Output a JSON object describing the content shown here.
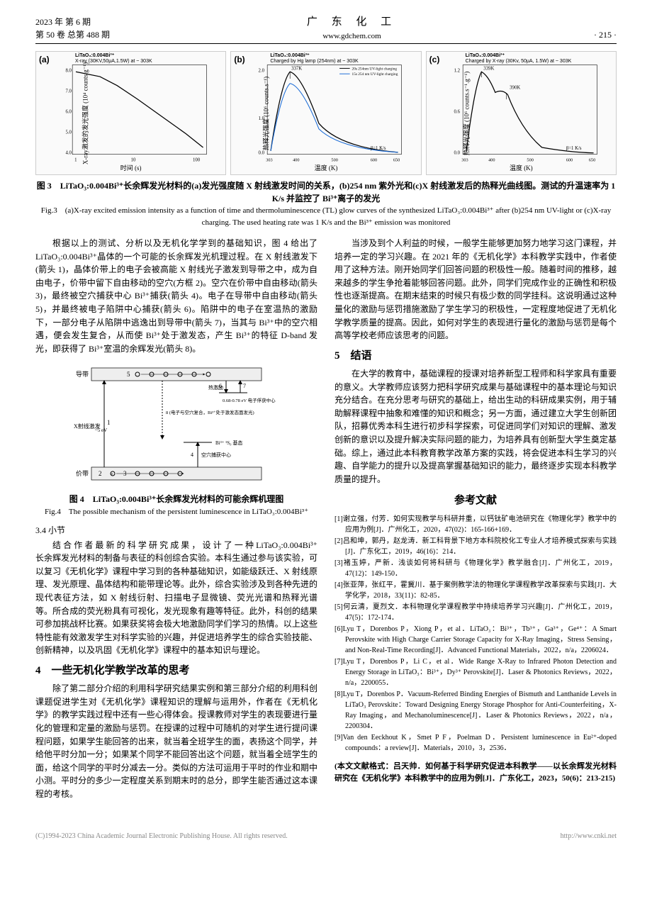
{
  "header": {
    "year_issue": "2023 年 第 6 期",
    "vol_issue": "第 50 卷 总第 488 期",
    "journal": "广 东 化 工",
    "url": "www.gdchem.com",
    "page": "· 215 ·"
  },
  "fig3": {
    "panels": {
      "a": {
        "tag": "(a)",
        "t1": "LiTaO₃:0.004Bi³⁺",
        "t2": "X-ray (30KV,50μA,1.5W) at ~ 303K",
        "ylabel": "X-ray激发的发光强度 (10⁴ counts.g⁻¹)",
        "xlabel": "时间 (s)",
        "type": "line",
        "line_color": "#000000",
        "x": [
          1,
          5,
          10,
          50,
          100,
          200
        ],
        "y": [
          8.5,
          8.2,
          8.0,
          6.8,
          5.8,
          4.5
        ],
        "xticks": [
          "1",
          "10",
          "100"
        ],
        "yticks": [
          "4.0",
          "5.0",
          "6.0",
          "7.0",
          "8.0"
        ],
        "xscale": "log"
      },
      "b": {
        "tag": "(b)",
        "t1": "LiTaO₃:0.004Bi³⁺",
        "t2": "Charged by Hg lamp (254nm) at ~ 303K",
        "legend": [
          "20s 254nm UV-light charging",
          "15s 254 nm UV-light charging"
        ],
        "ylabel": "热释光强度 (10⁶ counts.s⁻¹)",
        "xlabel": "温度 (K)",
        "type": "line",
        "line_colors": [
          "#000000",
          "#1a6bd6"
        ],
        "peak_label": "337K",
        "beta": "β=1 K/s",
        "xticks": [
          "303",
          "350",
          "400",
          "450",
          "500",
          "550",
          "600",
          "650"
        ],
        "yticks": [
          "0.0",
          "0.4",
          "0.8",
          "1.2",
          "1.6",
          "2.0"
        ]
      },
      "c": {
        "tag": "(c)",
        "t1": "LiTaO₃:0.004Bi³⁺",
        "t2": "Charged by X-ray (30Kv, 50μA, 1.5W) at ~ 303K",
        "ylabel": "热释光强度 (10⁶ counts.s⁻¹.g⁻¹)",
        "xlabel": "温度 (K)",
        "type": "line",
        "line_color": "#000000",
        "peak1": "339K",
        "peak2": "390K",
        "beta": "β=1 K/s",
        "xticks": [
          "303",
          "350",
          "400",
          "450",
          "500",
          "550",
          "600",
          "650"
        ],
        "yticks": [
          "0.0",
          "0.2",
          "0.4",
          "0.6",
          "0.8",
          "1.0",
          "1.2"
        ]
      }
    },
    "caption_cn": "图 3　LiTaO₃:0.004Bi³⁺长余辉发光材料的(a)发光强度随 X 射线激发时间的关系，(b)254 nm 紫外光和(c)X 射线激发后的热释光曲线图。测试的升温速率为 1 K/s 并监控了 Bi³⁺离子的发光",
    "caption_en": "Fig.3　(a)X-ray excited emission intensity as a function of time and thermoluminescence (TL) glow curves of the synthesized LiTaO₃:0.004Bi³⁺ after (b)254 nm UV-light or (c)X-ray charging. The used heating rate was 1 K/s and the Bi³⁺ emission was monitored"
  },
  "body": {
    "p1": "根据以上的测试、分析以及无机化学学到的基础知识，图 4 给出了 LiTaO₃:0.004Bi³⁺晶体的一个可能的长余辉发光机理过程。在 X 射线激发下(箭头 1)，晶体价带上的电子会被高能 X 射线光子激发到导带之中，成为自由电子，价带中留下自由移动的空穴(方框 2)。空穴在价带中自由移动(箭头 3)，最终被空穴捕获中心 Bi³⁺捕获(箭头 4)。电子在导带中自由移动(箭头 5)，并最终被电子陷阱中心捕获(箭头 6)。陷阱中的电子在室温热的激励下，一部分电子从陷阱中逃逸出到导带中(箭头 7)，当其与 Bi³⁺中的空穴相遇，便会发生复合，从而使 Bi³⁺处于激发态，产生 Bi³⁺的特征 D-band 发光，即获得了 Bi³⁺室温的余辉发光(箭头 8)。",
    "fig4": {
      "labels": {
        "cb": "导带",
        "vb": "价带",
        "xray": "X射线激发",
        "rec": "热激励",
        "trap_e": "0.68-0.78 eV 电子俘获中心",
        "recomb": "8 (电子与空穴复合，Bi³⁺处于激发态面发光)",
        "bi_gs": "Bi³⁺ ¹S₀ 基态",
        "hole": "空穴捕获中心",
        "gap": "~5 eV"
      },
      "caption_cn": "图 4　LiTaO₃:0.004Bi³⁺长余辉发光材料的可能余辉机理图",
      "caption_en": "Fig.4　The possible mechanism of the persistent luminescence in LiTaO₃:0.004Bi³⁺"
    },
    "s34_title": "3.4 小节",
    "p2": "结 合 作 者 最 新 的 科 学 研 究 成 果 ， 设 计 了 一 种 LiTaO₃:0.004Bi³⁺长余辉发光材料的制备与表征的科创综合实验。本科生通过参与该实验，可以复习《无机化学》课程中学习到的各种基础知识，如能级跃迁、X 射线原理、发光原理、晶体结构和能带理论等。此外，综合实验涉及到各种先进的现代表征方法，如 X 射线衍射、扫描电子显微镜、荧光光谱和热释光谱等。所合成的荧光粉具有可视化，发光现象有趣等特征。此外，科创的结果可参加挑战杯比赛。如果获奖将会极大地激励同学们学习的热情。以上这些特性能有效激发学生对科学实验的兴趣，并促进培养学生的综合实验技能、创新精神，以及巩固《无机化学》课程中的基本知识与理论。",
    "s4_title": "4　一些无机化学教学改革的思考",
    "p3": "除了第二部分介绍的利用科学研究结果实例和第三部分介绍的利用科创课题促进学生对《无机化学》课程知识的理解与运用外，作者在《无机化学》的教学实践过程中还有一些心得体会。授课教师对学生的表现要进行量化的管理和定量的激励与惩罚。在授课的过程中可随机的对学生进行提问课程问题，如果学生能回答的出来，就当着全班学生的面，表扬这个同学，并给他平时分加一分；如果某个同学不能回答出这个问题，就当着全班学生的面，给这个同学的平时分减去一分。类似的方法可运用于平时的作业和期中小测。平时分的多少一定程度关系到期末时的总分，即学生能否通过这本课程的考核。",
    "p4": "当涉及到个人利益的时候，一般学生能够更加努力地学习这门课程，并培养一定的学习兴趣。在 2021 年的《无机化学》本科教学实践中，作者使用了这种方法。刚开始同学们回答问题的积极性一般。随着时间的推移，越来越多的学生争抢着能够回答问题。此外，同学们完成作业的正确性和积极性也逐渐提高。在期末结束的时候只有极少数的同学挂科。这说明通过这种量化的激励与惩罚措施激励了学生学习的积极性，一定程度地促进了无机化学教学质量的提高。因此，如何对学生的表现进行量化的激励与惩罚是每个高等学校老师应该思考的问题。",
    "s5_title": "5　结语",
    "p5": "在大学的教育中，基础课程的授课对培养新型工程师和科学家具有重要的意义。大学教师应该努力把科学研究成果与基础课程中的基本理论与知识充分结合。在充分思考与研究的基础上，给出生动的科研成果实例，用于辅助解释课程中抽象和难懂的知识和概念；另一方面，通过建立大学生创新团队，招募优秀本科生进行初步科学探索，可促进同学们对知识的理解、激发创新的意识以及提升解决实际问题的能力，为培养具有创新型大学生奠定基础。综上，通过此本科教育教学改革方案的实践，将会促进本科生学习的兴趣、自学能力的提升以及提高掌握基础知识的能力，最终逐步实现本科教学质量的提升。"
  },
  "refs": {
    "title": "参考文献",
    "items": [
      "[1]谢立强，付芳．如何实现教学与科研并重，以钙钛矿电池研究在《物理化学》教学中的应用为例[J]．广州化工，2020，47(02)：165-166+169．",
      "[2]吕和坤，郭丹，赵龙涛．新工科背景下地方本科院校化工专业人才培养模式探索与实践[J]．广东化工，2019，46(16)：214．",
      "[3]褚玉婷，严新．浅谈如何将科研与《物理化学》教学融合[J]．广州化工，2019，47(12)：149-150．",
      "[4]张亚萍，张红平，霍冀川．基于案例教学法的物理化学课程教学改革探索与实践[J]．大学化学，2018，33(11)：82-85．",
      "[5]何云清，夏烈文．本科物理化学课程教学中持续培养学习兴趣[J]．广州化工，2019，47(5)：172-174．",
      "[6]Lyu T，Dorenbos P，Xiong P，et al．LiTaO₃：Bi³⁺，Tb³⁺，Ga³⁺，Ge⁴⁺：A Smart Perovskite with High Charge Carrier Storage Capacity for X-Ray Imaging，Stress Sensing，and Non-Real-Time Recording[J]．Advanced Functional Materials，2022，n/a，2206024．",
      "[7]Lyu T，Dorenbos P，Li C，et al．Wide Range X-Ray to Infrared Photon Detection and Energy Storage in LiTaO₃：Bi³⁺，Dy³⁺ Perovskite[J]．Laser & Photonics Reviews，2022，n/a，2200055．",
      "[8]Lyu T，Dorenbos P．Vacuum-Referred Binding Energies of Bismuth and Lanthanide Levels in LiTaO₃ Perovskite：Toward Designing Energy Storage Phosphor for Anti-Counterfeiting，X-Ray Imaging，and Mechanoluminescence[J]．Laser & Photonics Reviews，2022，n/a，2200304．",
      "[9]Van den Eeckhout K，Smet P F，Poelman D．Persistent luminescence in Eu²⁺-doped compounds：a review[J]．Materials，2010，3，2536．"
    ]
  },
  "cite": "(本文文献格式：吕天帅．如何基于科学研究促进本科教学——以长余辉发光材料研究在《无机化学》本科教学中的应用为例[J]．广东化工，2023，50(6)：213-215)",
  "footer": {
    "left": "(C)1994-2023 China Academic Journal Electronic Publishing House. All rights reserved.",
    "right": "http://www.cnki.net"
  }
}
